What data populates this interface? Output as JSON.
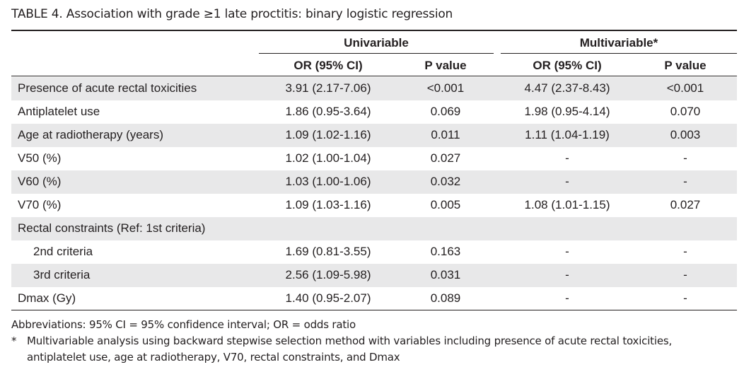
{
  "title": "TABLE 4.  Association with grade ≥1 late proctitis: binary logistic regression",
  "groups": {
    "univariable": "Univariable",
    "multivariable": "Multivariable*"
  },
  "columns": {
    "or_uni": "OR (95% CI)",
    "p_uni": "P value",
    "or_multi": "OR (95% CI)",
    "p_multi": "P value"
  },
  "rows": [
    {
      "label": "Presence of acute rectal toxicities",
      "or_uni": "3.91 (2.17-7.06)",
      "p_uni": "<0.001",
      "or_multi": "4.47 (2.37-8.43)",
      "p_multi": "<0.001"
    },
    {
      "label": "Antiplatelet use",
      "or_uni": "1.86 (0.95-3.64)",
      "p_uni": "0.069",
      "or_multi": "1.98 (0.95-4.14)",
      "p_multi": "0.070"
    },
    {
      "label": "Age at radiotherapy (years)",
      "or_uni": "1.09 (1.02-1.16)",
      "p_uni": "0.011",
      "or_multi": "1.11 (1.04-1.19)",
      "p_multi": "0.003"
    },
    {
      "label": "V50 (%)",
      "or_uni": "1.02 (1.00-1.04)",
      "p_uni": "0.027",
      "or_multi": "-",
      "p_multi": "-"
    },
    {
      "label": "V60 (%)",
      "or_uni": "1.03 (1.00-1.06)",
      "p_uni": "0.032",
      "or_multi": "-",
      "p_multi": "-"
    },
    {
      "label": "V70 (%)",
      "or_uni": "1.09 (1.03-1.16)",
      "p_uni": "0.005",
      "or_multi": "1.08 (1.01-1.15)",
      "p_multi": "0.027"
    },
    {
      "label": "Rectal constraints (Ref: 1st criteria)",
      "or_uni": "",
      "p_uni": "",
      "or_multi": "",
      "p_multi": ""
    },
    {
      "label": "2nd criteria",
      "or_uni": "1.69 (0.81-3.55)",
      "p_uni": "0.163",
      "or_multi": "-",
      "p_multi": "-"
    },
    {
      "label": "3rd criteria",
      "or_uni": "2.56 (1.09-5.98)",
      "p_uni": "0.031",
      "or_multi": "-",
      "p_multi": "-"
    },
    {
      "label": "Dmax (Gy)",
      "or_uni": "1.40 (0.95-2.07)",
      "p_uni": "0.089",
      "or_multi": "-",
      "p_multi": "-"
    }
  ],
  "footnotes": {
    "abbreviations": "Abbreviations: 95% CI = 95% confidence interval; OR = odds ratio",
    "star_marker": "*",
    "star_line1": "Multivariable analysis using backward stepwise selection method with variables including presence of acute rectal toxicities,",
    "star_line2": "antiplatelet use, age at radiotherapy, V70, rectal constraints, and Dmax"
  }
}
